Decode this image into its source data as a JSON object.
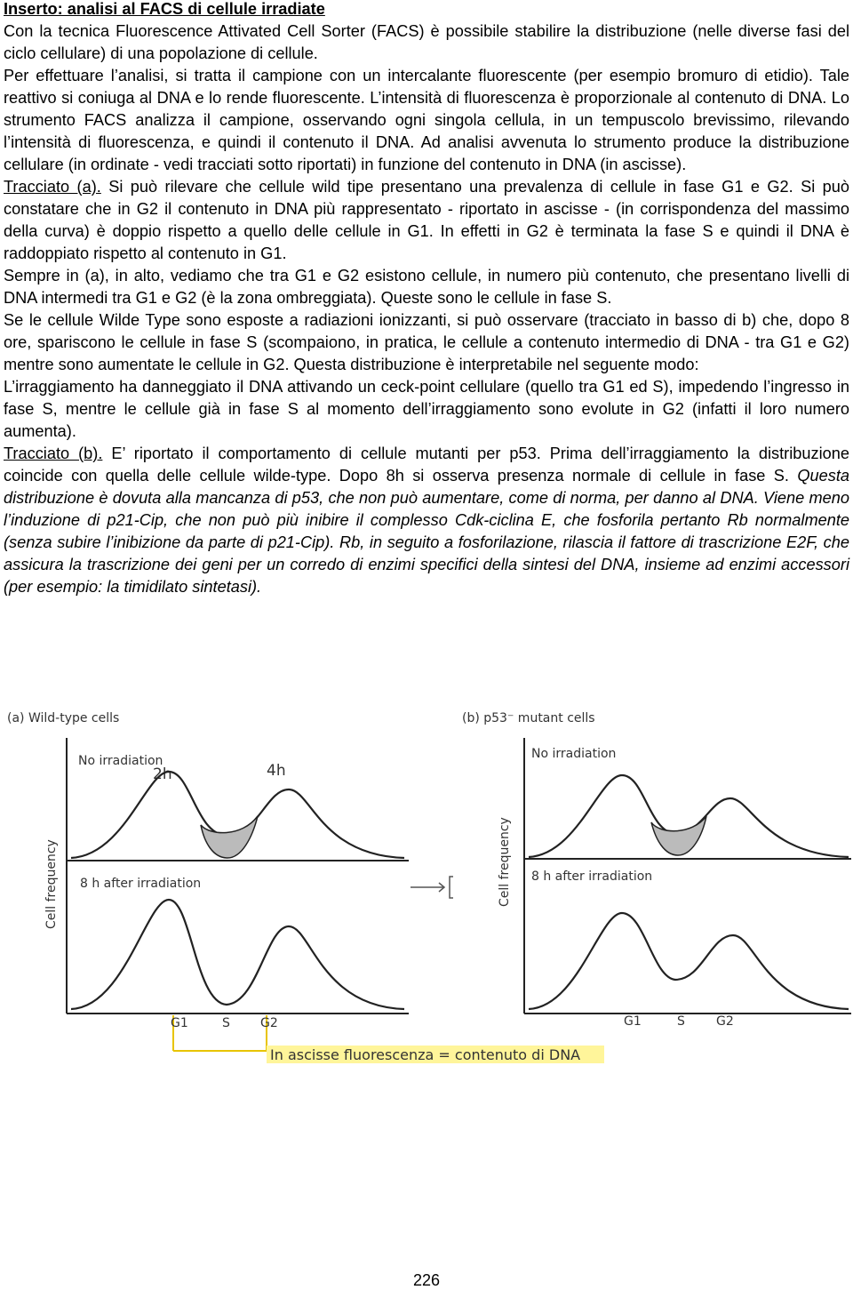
{
  "title": "Inserto: analisi al FACS di cellule irradiate",
  "paragraphs": [
    [
      {
        "text": "Con la tecnica Fluorescence Attivated Cell Sorter (FACS) è possibile stabilire la distribuzione (nelle diverse fasi del ciclo cellulare) di una popolazione di cellule."
      }
    ],
    [
      {
        "text": "Per effettuare l’analisi, si tratta il campione con un intercalante fluorescente (per esempio bromuro di etidio). Tale reattivo si coniuga al DNA e lo rende fluorescente. L’intensità di fluorescenza è proporzionale al contenuto di DNA. Lo strumento FACS analizza il campione, osservando ogni singola cellula, in un tempuscolo brevissimo, rilevando l’intensità di fluorescenza, e quindi il contenuto il DNA. Ad analisi avvenuta lo strumento produce la distribuzione cellulare (in ordinate - vedi tracciati sotto riportati) in funzione del contenuto in DNA (in ascisse)."
      }
    ],
    [
      {
        "text": "Tracciato  (a).",
        "underline": true
      },
      {
        "text": " Si può rilevare che cellule wild tipe presentano una prevalenza di cellule in fase G1 e G2. Si può constatare che in G2 il contenuto in DNA più rappresentato - riportato in ascisse - (in corrispondenza del massimo della curva) è doppio rispetto a quello delle cellule in G1. In effetti in G2 è terminata la fase S e quindi il DNA è raddoppiato rispetto al contenuto in G1."
      }
    ],
    [
      {
        "text": "Sempre in (a), in alto, vediamo che tra G1 e G2 esistono cellule, in numero più contenuto, che presentano livelli di DNA intermedi tra G1 e G2 (è la zona ombreggiata). Queste sono le cellule in fase S."
      }
    ],
    [
      {
        "text": "Se le cellule Wilde Type sono esposte a radiazioni ionizzanti, si può osservare (tracciato in basso di b) che, dopo 8 ore, spariscono le cellule in fase S (scompaiono, in pratica, le cellule a contenuto intermedio di DNA - tra G1 e G2) mentre sono aumentate le cellule in G2.  Questa distribuzione è interpretabile nel seguente modo:"
      }
    ],
    [
      {
        "text": "L’irraggiamento ha danneggiato il DNA attivando un ceck-point cellulare (quello tra G1 ed S), impedendo l’ingresso in fase S, mentre le cellule già in fase S al momento dell’irraggiamento sono evolute in G2 (infatti il loro numero aumenta)."
      }
    ],
    [
      {
        "text": "Tracciato (b).",
        "underline": true
      },
      {
        "text": " E’ riportato il comportamento di cellule mutanti per p53. Prima dell’irraggiamento la distribuzione coincide con quella delle cellule wilde-type. Dopo 8h si osserva presenza normale di cellule in fase S. "
      },
      {
        "text": "Questa distribuzione è dovuta alla mancanza di p53, che non può aumentare, come di norma, per danno al DNA. Viene meno l’induzione di p21-Cip, che non può più inibire il complesso Cdk-ciclina E, che fosforila pertanto Rb normalmente (senza subire l’inibizione da parte di p21-Cip). Rb, in seguito a fosforilazione, rilascia il fattore di trascrizione E2F, che assicura la trascrizione dei geni per un corredo di enzimi specifici della sintesi del DNA, insieme ad enzimi accessori (per esempio: la timidilato sintetasi).",
        "italic": true
      }
    ]
  ],
  "figure": {
    "panel_a": {
      "title": "(a) Wild-type cells",
      "top_label": "No irradiation",
      "marker_2h": "2h",
      "marker_4h": "4h",
      "bottom_label": "8 h after irradiation",
      "y_label": "Cell frequency",
      "x_labels": [
        "G1",
        "S",
        "G2"
      ]
    },
    "panel_b": {
      "title": "(b) p53⁻ mutant cells",
      "top_label": "No irradiation",
      "bottom_label": "8 h after irradiation",
      "y_label": "Cell frequency",
      "x_labels": [
        "G1",
        "S",
        "G2"
      ]
    },
    "caption": "In ascisse fluorescenza = contenuto di DNA"
  },
  "page_number": "226"
}
